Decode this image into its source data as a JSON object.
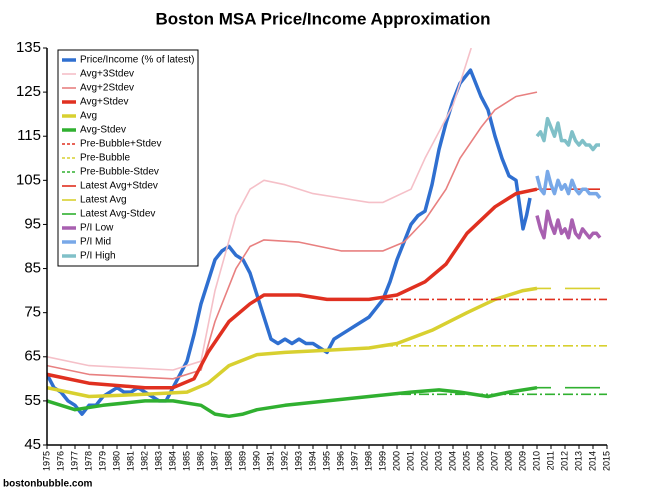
{
  "chart_data": {
    "type": "line",
    "title": "Boston MSA Price/Income Approximation",
    "source": "bostonbubble.com",
    "xlim": [
      1975,
      2015
    ],
    "xticks": [
      1975,
      1976,
      1977,
      1978,
      1979,
      1980,
      1981,
      1982,
      1983,
      1984,
      1985,
      1986,
      1987,
      1988,
      1989,
      1990,
      1991,
      1992,
      1993,
      1994,
      1995,
      1996,
      1997,
      1998,
      1999,
      2000,
      2001,
      2002,
      2003,
      2004,
      2005,
      2006,
      2007,
      2008,
      2009,
      2010,
      2011,
      2012,
      2013,
      2014,
      2015
    ],
    "ylim": [
      45,
      135
    ],
    "yticks": [
      45,
      55,
      65,
      75,
      85,
      95,
      105,
      115,
      125,
      135
    ],
    "legend": "upper-left",
    "series": [
      {
        "name": "Price/Income (% of latest)",
        "color": "#2f6fd0",
        "style": "thick",
        "x": [
          1975,
          1975.5,
          1976,
          1976.5,
          1977,
          1977.5,
          1978,
          1978.5,
          1979,
          1979.5,
          1980,
          1980.5,
          1981,
          1981.5,
          1982,
          1982.5,
          1983,
          1983.5,
          1984,
          1984.5,
          1985,
          1985.5,
          1986,
          1986.5,
          1987,
          1987.5,
          1988,
          1988.5,
          1989,
          1989.5,
          1990,
          1990.5,
          1991,
          1991.5,
          1992,
          1992.5,
          1993,
          1993.5,
          1994,
          1994.5,
          1995,
          1995.5,
          1996,
          1996.5,
          1997,
          1997.5,
          1998,
          1998.5,
          1999,
          1999.5,
          2000,
          2000.5,
          2001,
          2001.5,
          2002,
          2002.5,
          2003,
          2003.5,
          2004,
          2004.5,
          2005,
          2005.25,
          2005.5,
          2006,
          2006.5,
          2007,
          2007.5,
          2008,
          2008.5,
          2009,
          2009.25,
          2009.5
        ],
        "values": [
          61,
          58,
          57,
          55,
          54,
          52,
          54,
          54,
          56,
          57,
          58,
          57,
          57,
          58,
          57,
          56,
          55,
          55,
          58,
          61,
          64,
          70,
          77,
          82,
          87,
          89,
          90,
          88,
          87,
          84,
          79,
          74,
          69,
          68,
          69,
          68,
          69,
          68,
          68,
          67,
          66,
          69,
          70,
          71,
          72,
          73,
          74,
          76,
          78,
          82,
          87,
          91,
          95,
          97,
          98,
          104,
          112,
          118,
          123,
          127,
          129,
          130,
          128,
          124,
          121,
          115,
          110,
          106,
          105,
          94,
          97,
          101
        ]
      },
      {
        "name": "Avg+3Stdev",
        "color": "#f5c0c8",
        "style": "thin",
        "x": [
          1975,
          1978,
          1984,
          1986,
          1987,
          1988.5,
          1989.5,
          1990.5,
          1992,
          1994,
          1996,
          1998,
          1999,
          2001,
          2002,
          2004,
          2005.3
        ],
        "values": [
          65,
          63,
          62,
          64,
          80,
          97,
          103,
          105,
          104,
          102,
          101,
          100,
          100,
          103,
          110,
          122,
          135
        ]
      },
      {
        "name": "Avg+2Stdev",
        "color": "#e88080",
        "style": "thin",
        "x": [
          1975,
          1978,
          1984,
          1986,
          1987,
          1988.5,
          1989.5,
          1990.5,
          1993,
          1996,
          1999,
          2000.5,
          2002,
          2003.5,
          2004.5,
          2006,
          2007,
          2008.5,
          2010
        ],
        "values": [
          63,
          61,
          60,
          62,
          73,
          85,
          90,
          91.5,
          91,
          89,
          89,
          91,
          96,
          103,
          110,
          117,
          121,
          124,
          125
        ]
      },
      {
        "name": "Avg+Stdev",
        "color": "#e03020",
        "style": "thick",
        "x": [
          1975,
          1978,
          1982,
          1984,
          1985.5,
          1986.5,
          1988,
          1989.5,
          1990.5,
          1993,
          1995,
          1998,
          2000,
          2002,
          2003.5,
          2005,
          2007,
          2008.5,
          2010
        ],
        "values": [
          61,
          59,
          58,
          58,
          60,
          66,
          73,
          77,
          79,
          79,
          78,
          78,
          79,
          82,
          86,
          93,
          99,
          102,
          103
        ]
      },
      {
        "name": "Avg",
        "color": "#d8d030",
        "style": "thick",
        "x": [
          1975,
          1978,
          1982,
          1985,
          1986.5,
          1988,
          1990,
          1992,
          1995,
          1998,
          2000,
          2002.5,
          2005,
          2007,
          2009,
          2010
        ],
        "values": [
          58,
          56,
          56.5,
          57,
          59,
          63,
          65.5,
          66,
          66.5,
          67,
          68,
          71,
          75,
          78,
          80,
          80.5
        ]
      },
      {
        "name": "Avg-Stdev",
        "color": "#30b030",
        "style": "thick",
        "x": [
          1975,
          1977,
          1979,
          1982,
          1984,
          1986,
          1987,
          1988,
          1989,
          1990,
          1992,
          1995,
          1998,
          2001,
          2003,
          2004.5,
          2006.5,
          2008,
          2010
        ],
        "values": [
          55,
          53,
          54,
          55,
          55,
          54,
          52,
          51.5,
          52,
          53,
          54,
          55,
          56,
          57,
          57.5,
          57,
          56,
          57,
          58
        ]
      },
      {
        "name": "Pre-Bubble+Stdev",
        "color": "#e03020",
        "style": "dashdot",
        "x": [
          1999,
          2015
        ],
        "values": [
          78,
          78
        ]
      },
      {
        "name": "Pre-Bubble",
        "color": "#d8d030",
        "style": "dashdot",
        "x": [
          1999,
          2015
        ],
        "values": [
          67.5,
          67.5
        ]
      },
      {
        "name": "Pre-Bubble-Stdev",
        "color": "#30b030",
        "style": "dashdot",
        "x": [
          1999,
          2015
        ],
        "values": [
          56.5,
          56.5
        ]
      },
      {
        "name": "Latest Avg+Stdev",
        "color": "#e03020",
        "style": "thin",
        "x": [
          2010,
          2011,
          2011.5,
          2012,
          2014.5
        ],
        "values": [
          103,
          103,
          null,
          103,
          103
        ]
      },
      {
        "name": "Latest Avg",
        "color": "#d8d030",
        "style": "thin",
        "x": [
          2010,
          2011,
          2011.5,
          2012,
          2014.5
        ],
        "values": [
          80.5,
          80.5,
          null,
          80.5,
          80.5
        ]
      },
      {
        "name": "Latest Avg-Stdev",
        "color": "#30b030",
        "style": "thin",
        "x": [
          2010,
          2011,
          2011.5,
          2012,
          2014.5
        ],
        "values": [
          58,
          58,
          null,
          58,
          58
        ]
      },
      {
        "name": "P/I Low",
        "color": "#a860b0",
        "style": "thick",
        "x": [
          2010,
          2010.25,
          2010.5,
          2010.75,
          2011,
          2011.25,
          2011.5,
          2011.75,
          2012,
          2012.25,
          2012.5,
          2012.75,
          2013,
          2013.25,
          2013.5,
          2013.75,
          2014,
          2014.25,
          2014.5
        ],
        "values": [
          97,
          94,
          92,
          98,
          95,
          93,
          96,
          93,
          94,
          92,
          96,
          93,
          92,
          94,
          93,
          92,
          93,
          93,
          92
        ]
      },
      {
        "name": "P/I Mid",
        "color": "#78a8e8",
        "style": "thick",
        "x": [
          2010,
          2010.25,
          2010.5,
          2010.75,
          2011,
          2011.25,
          2011.5,
          2011.75,
          2012,
          2012.25,
          2012.5,
          2012.75,
          2013,
          2013.25,
          2013.5,
          2013.75,
          2014,
          2014.25,
          2014.5
        ],
        "values": [
          106,
          103,
          102,
          107,
          104,
          102,
          105,
          103,
          104,
          102,
          105,
          103,
          102,
          103,
          103,
          102,
          102,
          102,
          101
        ]
      },
      {
        "name": "P/I High",
        "color": "#80c0c8",
        "style": "thick",
        "x": [
          2010,
          2010.25,
          2010.5,
          2010.75,
          2011,
          2011.25,
          2011.5,
          2011.75,
          2012,
          2012.25,
          2012.5,
          2012.75,
          2013,
          2013.25,
          2013.5,
          2013.75,
          2014,
          2014.25,
          2014.5
        ],
        "values": [
          115,
          116,
          114,
          119,
          117,
          115,
          118,
          114,
          114,
          113,
          116,
          114,
          113,
          114,
          113,
          113,
          112,
          113,
          113
        ]
      }
    ]
  }
}
